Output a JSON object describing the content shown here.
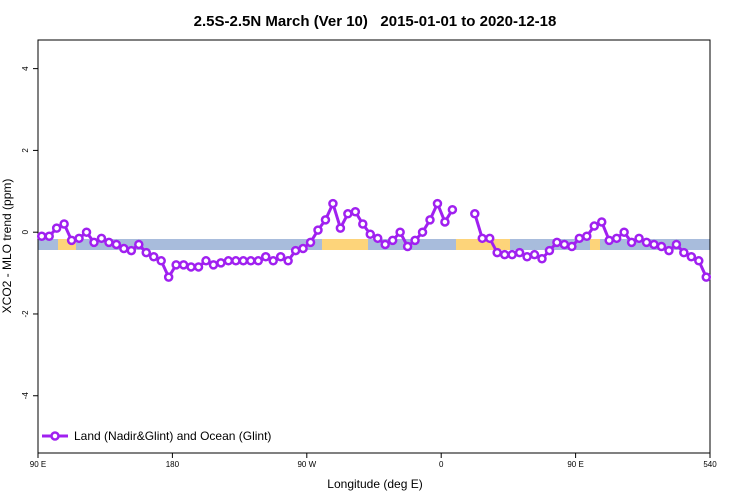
{
  "chart_data": {
    "type": "line",
    "title": "2.5S-2.5N March (Ver 10)   2015-01-01 to 2020-12-18",
    "x_label": "Longitude (deg E)",
    "y_label": "XCO2 - MLO trend (ppm)",
    "xlim": [
      90,
      540
    ],
    "xticks": [
      {
        "value": 90,
        "label": "90 E"
      },
      180,
      {
        "value": 270,
        "label": "90 W"
      },
      {
        "value": 360,
        "label": "0"
      },
      {
        "value": 450,
        "label": "90 E"
      },
      540
    ],
    "ylim": [
      -5.4,
      4.7
    ],
    "yticks": [
      4,
      2,
      0,
      -2,
      -4
    ],
    "legend": "bottom-left",
    "x": [
      92.5,
      97.5,
      102.5,
      107.5,
      112.5,
      117.5,
      122.5,
      127.5,
      132.5,
      137.5,
      142.5,
      147.5,
      152.5,
      157.5,
      162.5,
      167.5,
      172.5,
      177.5,
      182.5,
      187.5,
      192.5,
      197.5,
      202.5,
      207.5,
      212.5,
      217.5,
      222.5,
      227.5,
      232.5,
      237.5,
      242.5,
      247.5,
      252.5,
      257.5,
      262.5,
      267.5,
      272.5,
      277.5,
      282.5,
      287.5,
      292.5,
      297.5,
      302.5,
      307.5,
      312.5,
      317.5,
      322.5,
      327.5,
      332.5,
      337.5,
      342.5,
      347.5,
      352.5,
      357.5,
      362.5,
      367.5,
      372.5,
      377.5,
      382.5,
      387.5,
      392.5,
      397.5,
      402.5,
      407.5,
      412.5,
      417.5,
      422.5,
      427.5,
      432.5,
      437.5,
      442.5,
      447.5,
      452.5,
      457.5,
      462.5,
      467.5,
      472.5,
      477.5,
      482.5,
      487.5,
      492.5,
      497.5,
      502.5,
      507.5,
      512.5,
      517.5,
      522.5,
      527.5,
      532.5,
      537.5
    ],
    "series": [
      {
        "name": "Land (Nadir&Glint) and Ocean (Glint)",
        "color": "#a020f0",
        "values": [
          -0.1,
          -0.1,
          0.1,
          0.2,
          -0.2,
          -0.15,
          0.0,
          -0.25,
          -0.15,
          -0.25,
          -0.3,
          -0.4,
          -0.45,
          -0.3,
          -0.5,
          -0.6,
          -0.7,
          -1.1,
          -0.8,
          -0.8,
          -0.85,
          -0.85,
          -0.7,
          -0.8,
          -0.75,
          -0.7,
          -0.7,
          -0.7,
          -0.7,
          -0.7,
          -0.6,
          -0.7,
          -0.6,
          -0.7,
          -0.45,
          -0.4,
          -0.25,
          0.05,
          0.3,
          0.7,
          0.1,
          0.45,
          0.5,
          0.2,
          -0.05,
          -0.15,
          -0.3,
          -0.2,
          0.0,
          -0.35,
          -0.2,
          0.0,
          0.3,
          0.7,
          0.25,
          0.55,
          null,
          null,
          0.45,
          -0.15,
          -0.15,
          -0.5,
          -0.55,
          -0.55,
          -0.5,
          -0.6,
          -0.55,
          -0.65,
          -0.45,
          -0.25,
          -0.3,
          -0.35,
          -0.15,
          -0.1,
          0.15,
          0.25,
          -0.2,
          -0.15,
          0.0,
          -0.25,
          -0.15,
          -0.25,
          -0.3,
          -0.35,
          -0.45,
          -0.3,
          -0.5,
          -0.6,
          -0.7,
          -1.1
        ]
      }
    ]
  }
}
